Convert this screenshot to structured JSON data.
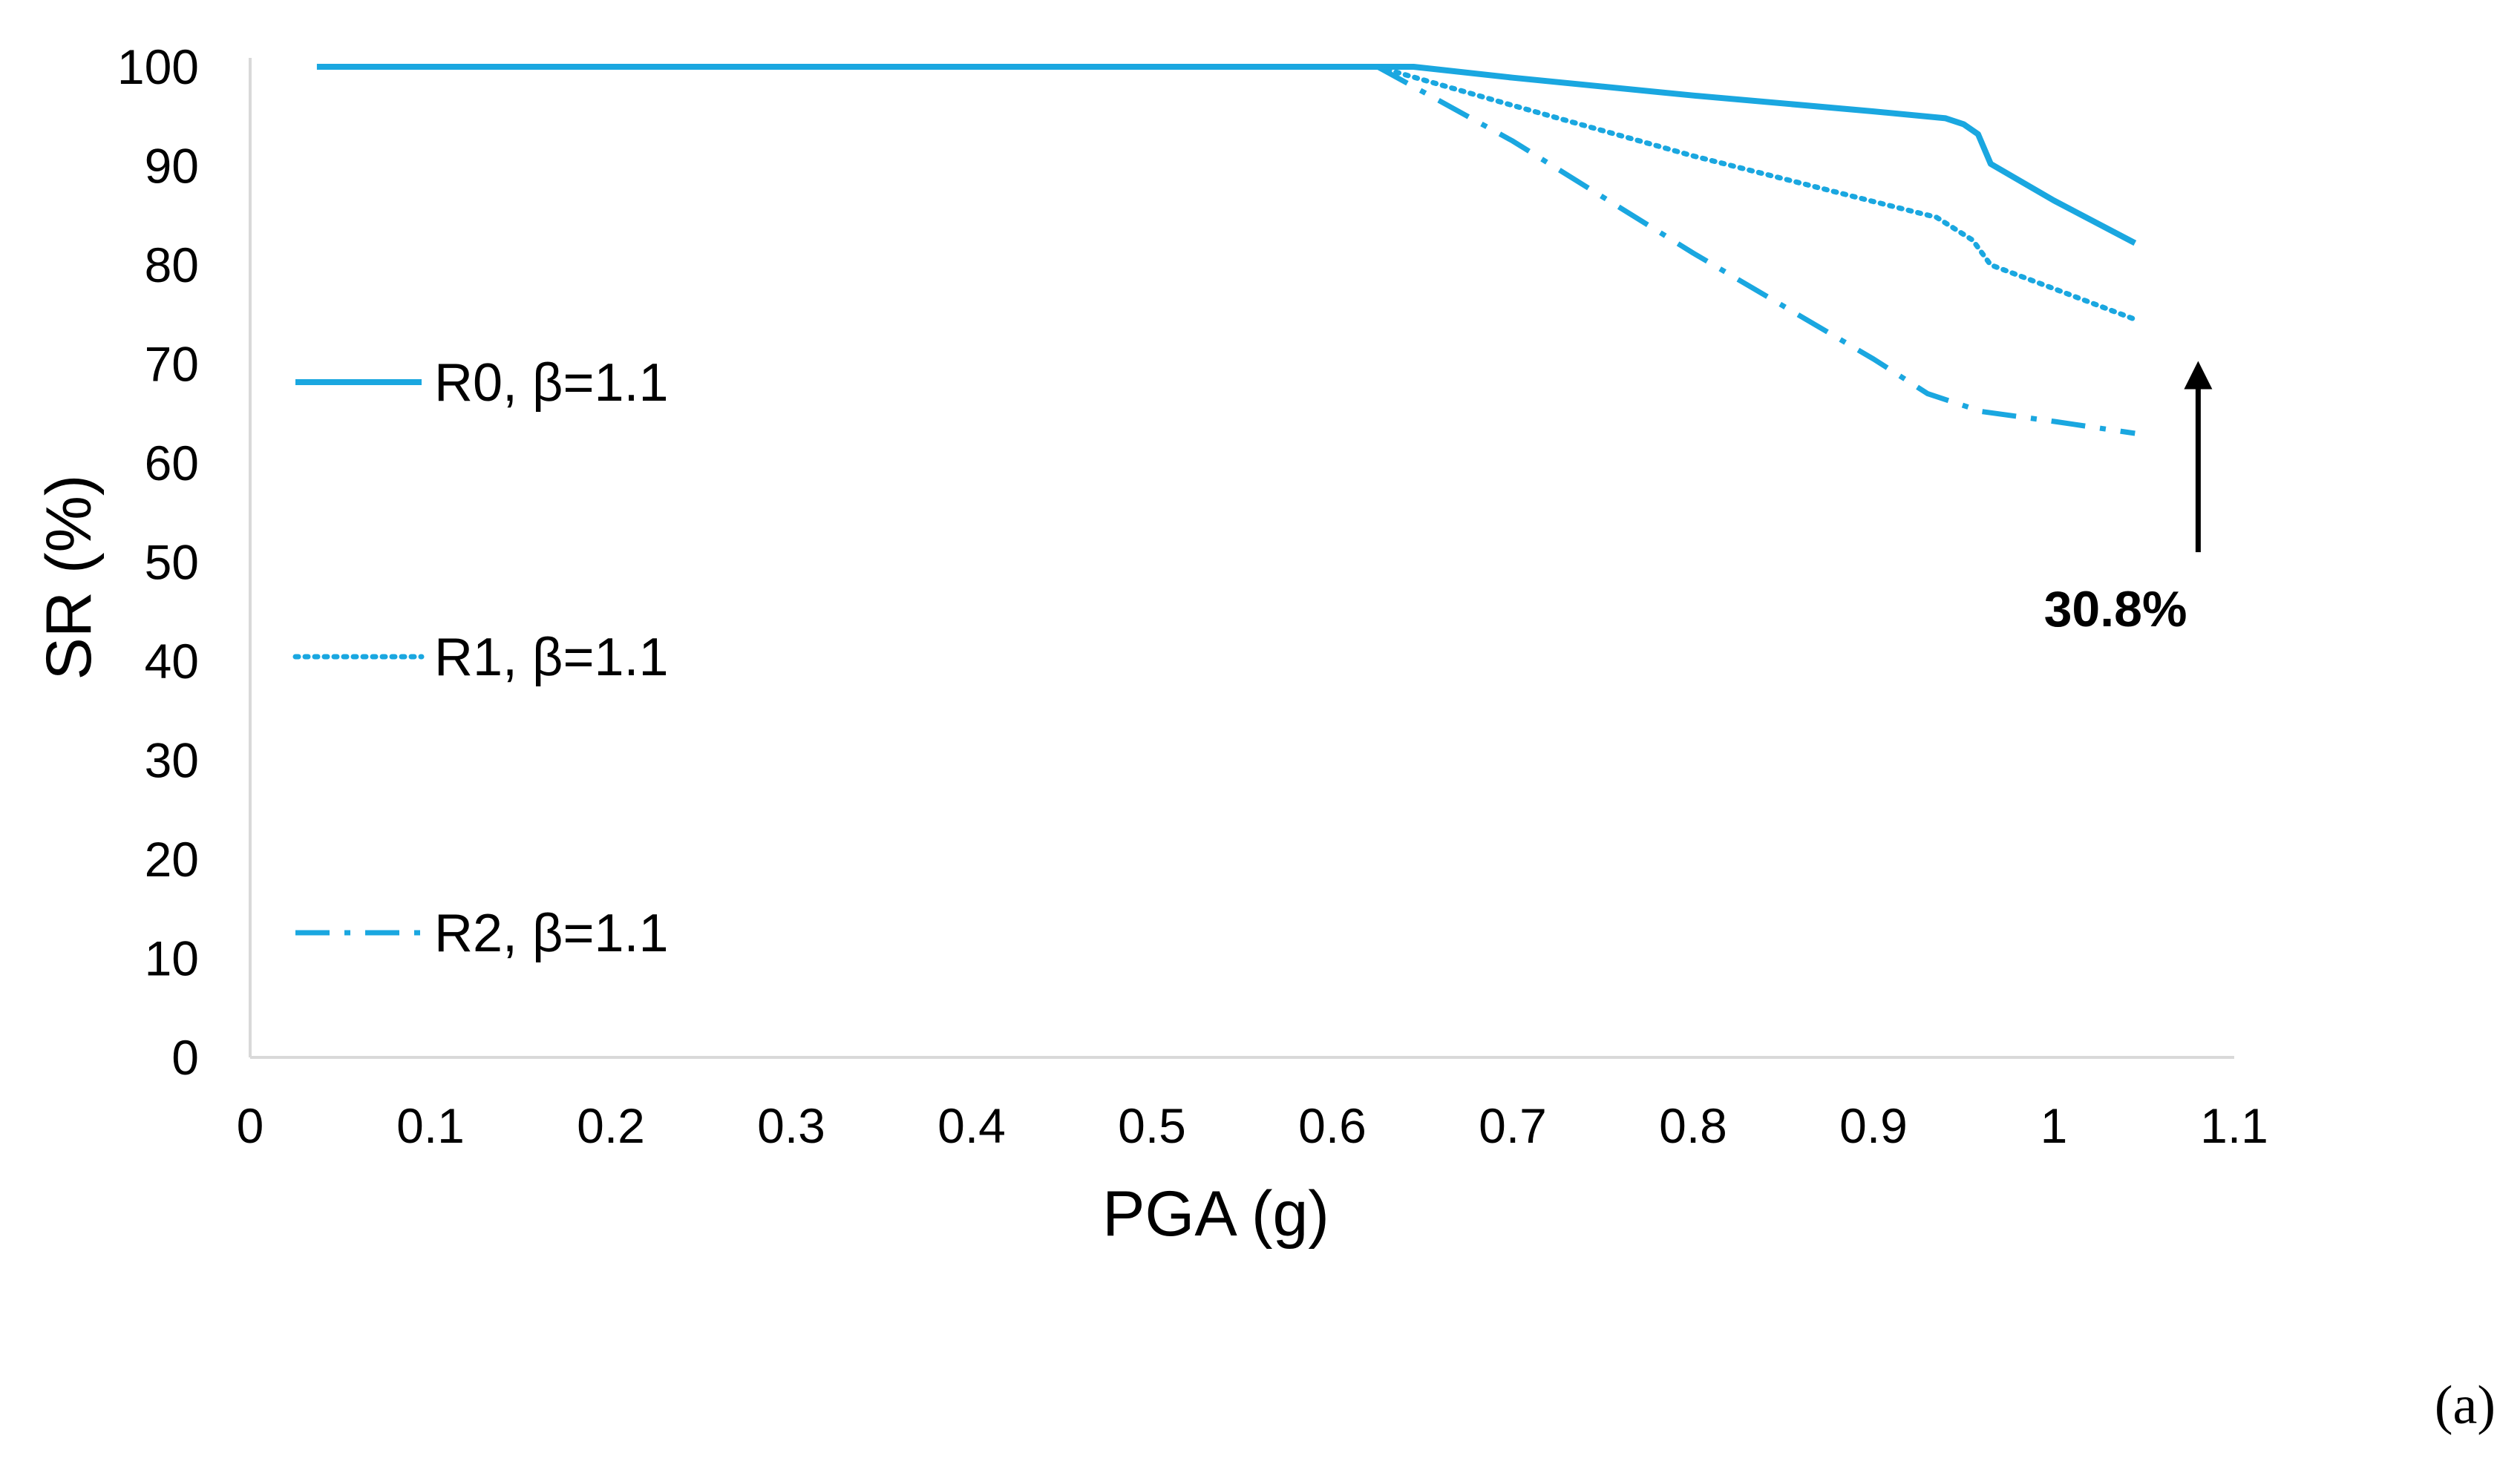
{
  "chart_data": {
    "type": "line",
    "xlabel": "PGA (g)",
    "ylabel": "SR (%)",
    "xlim": [
      0,
      1.1
    ],
    "ylim": [
      0,
      100
    ],
    "x_ticks": [
      "0",
      "0.1",
      "0.2",
      "0.3",
      "0.4",
      "0.5",
      "0.6",
      "0.7",
      "0.8",
      "0.9",
      "1",
      "1.1"
    ],
    "y_ticks": [
      "0",
      "10",
      "20",
      "30",
      "40",
      "50",
      "60",
      "70",
      "80",
      "90",
      "100"
    ],
    "grid": false,
    "legend_position": "left",
    "series": [
      {
        "name": "R0, β=1.1",
        "dash": "solid",
        "color": "#1aa7e0",
        "points": [
          [
            0.037,
            100
          ],
          [
            0.645,
            100
          ],
          [
            0.7,
            98.9
          ],
          [
            0.8,
            97.1
          ],
          [
            0.9,
            95.5
          ],
          [
            0.94,
            94.8
          ],
          [
            0.95,
            94.2
          ],
          [
            0.958,
            93.2
          ],
          [
            0.965,
            90.2
          ],
          [
            1.0,
            86.5
          ],
          [
            1.045,
            82.2
          ]
        ]
      },
      {
        "name": "R1, β=1.1",
        "dash": "dotted",
        "color": "#1aa7e0",
        "points": [
          [
            0.625,
            100
          ],
          [
            0.7,
            96.1
          ],
          [
            0.8,
            91.0
          ],
          [
            0.9,
            86.4
          ],
          [
            0.935,
            84.8
          ],
          [
            0.955,
            82.5
          ],
          [
            0.965,
            80.0
          ],
          [
            1.0,
            77.6
          ],
          [
            1.045,
            74.5
          ]
        ]
      },
      {
        "name": "R2, β=1.1",
        "dash": "dashdot",
        "color": "#1aa7e0",
        "points": [
          [
            0.625,
            100
          ],
          [
            0.7,
            92.5
          ],
          [
            0.8,
            81.2
          ],
          [
            0.9,
            70.5
          ],
          [
            0.93,
            67.0
          ],
          [
            0.96,
            65.2
          ],
          [
            1.0,
            64.2
          ],
          [
            1.045,
            63.0
          ]
        ]
      }
    ],
    "annotation": {
      "text": "30.8%",
      "arrow_x": 1.08,
      "arrow_from": 51,
      "arrow_to": 70,
      "direction": "up"
    }
  },
  "panel_label": "(a)"
}
